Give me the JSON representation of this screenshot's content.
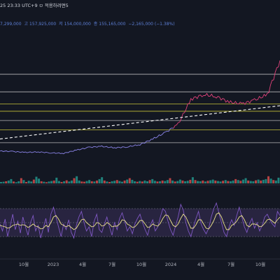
{
  "header": {
    "time_info": "25 23:33 UTC+9 ㅁ 적용하려면5",
    "ohlc": {
      "open": "7,299,000",
      "high_label": "고",
      "high": "157,925,000",
      "low_label": "저",
      "low": "154,000,000",
      "close_label": "종",
      "close": "155,165,000",
      "change": "−2,165,000 (−1.38%)"
    }
  },
  "colors": {
    "background": "#131722",
    "price_line": "#8b84e8",
    "price_line_up": "#e0417a",
    "level_line": "#c9c9c9",
    "level_line_yellow": "#d8d33a",
    "trend_line": "#ffffff",
    "volume_up": "#26a69a",
    "volume_down": "#ef5350",
    "osc_line": "#7e57c2",
    "osc_signal": "#f0e68c",
    "osc_band": "#3a2f5a",
    "axis_text": "#b2b5be"
  },
  "chart_data": {
    "type": "line",
    "x_ticks": [
      "10월",
      "2023",
      "4월",
      "7월",
      "10월",
      "2024",
      "4월",
      "7월",
      "10월"
    ],
    "price": {
      "unit": "KRW",
      "ylim": [
        20000000,
        160000000
      ],
      "x": [
        0,
        5,
        10,
        15,
        20,
        25,
        30,
        35,
        40,
        45,
        50,
        55,
        60,
        65,
        70,
        75,
        80,
        85,
        90,
        95,
        100,
        105,
        110
      ],
      "values": [
        27000000,
        26500000,
        25500000,
        26000000,
        25000000,
        24500000,
        28000000,
        31000000,
        32000000,
        30500000,
        31500000,
        34000000,
        40000000,
        47000000,
        56000000,
        83000000,
        88000000,
        86000000,
        80000000,
        78000000,
        82000000,
        88000000,
        125000000
      ],
      "levels": [
        {
          "value": 110000000,
          "color": "level_line"
        },
        {
          "value": 91000000,
          "color": "level_line"
        },
        {
          "value": 78000000,
          "color": "level_line_yellow"
        },
        {
          "value": 70000000,
          "color": "level_line_yellow"
        },
        {
          "value": 60000000,
          "color": "level_line"
        },
        {
          "value": 50000000,
          "color": "level_line_yellow"
        },
        {
          "value": 36000000,
          "color": "level_line"
        }
      ],
      "trend_line": {
        "start": [
          0,
          40000000
        ],
        "end": [
          110000000,
          76000000
        ]
      }
    },
    "volume": {
      "ylim": [
        0,
        100
      ],
      "values": [
        6,
        7,
        9,
        12,
        18,
        8,
        5,
        9,
        22,
        14,
        6,
        11,
        8,
        16,
        28,
        20,
        9,
        7,
        5,
        8,
        10,
        12,
        24,
        10,
        6,
        9,
        13,
        8,
        12,
        22,
        30,
        12,
        8,
        7,
        10,
        14,
        9,
        8,
        12,
        18,
        26,
        12,
        8,
        6,
        9,
        11,
        14,
        10,
        7,
        12,
        16,
        22,
        15,
        9,
        7,
        10,
        8,
        12,
        9,
        14,
        18,
        11,
        8,
        9,
        12,
        10,
        14,
        22,
        12,
        8,
        10,
        16,
        12,
        9,
        11,
        15,
        26,
        14,
        10,
        9,
        12,
        8,
        11,
        13,
        16,
        12,
        10,
        8,
        11,
        14,
        10,
        9,
        12,
        18,
        14,
        11,
        16,
        22,
        12,
        10,
        9,
        13,
        16,
        12,
        15,
        18,
        30,
        20,
        14,
        12,
        24
      ],
      "up": [
        1,
        1,
        0,
        1,
        1,
        0,
        1,
        1,
        0,
        1,
        0,
        1,
        1,
        0,
        1,
        1,
        0,
        1,
        0,
        1,
        1,
        0,
        1,
        1,
        0,
        1,
        0,
        1,
        1,
        0,
        1,
        1,
        0,
        0,
        1,
        1,
        0,
        1,
        0,
        1,
        1,
        0,
        1,
        0,
        1,
        1,
        0,
        1,
        1,
        0,
        1,
        0,
        1,
        1,
        0,
        1,
        0,
        1,
        1,
        0,
        1,
        1,
        0,
        1,
        0,
        1,
        1,
        0,
        1,
        0,
        1,
        1,
        0,
        1,
        1,
        0,
        1,
        0,
        1,
        1,
        0,
        1,
        0,
        1,
        1,
        0,
        1,
        1,
        0,
        1,
        0,
        1,
        1,
        0,
        1,
        0,
        1,
        1,
        0,
        1,
        1,
        0,
        1,
        0,
        1,
        1,
        0,
        1,
        0,
        1,
        1
      ]
    },
    "oscillator": {
      "ylim": [
        0,
        100
      ],
      "band": [
        30,
        70
      ],
      "values": [
        48,
        38,
        55,
        30,
        45,
        62,
        40,
        52,
        35,
        58,
        44,
        32,
        50,
        60,
        38,
        46,
        28,
        42,
        56,
        36,
        62,
        72,
        58,
        44,
        30,
        48,
        40,
        54,
        36,
        28,
        46,
        58,
        66,
        50,
        38,
        44,
        30,
        52,
        62,
        40,
        36,
        48,
        58,
        44,
        32,
        50,
        40,
        56,
        64,
        52,
        38,
        44,
        34,
        48,
        56,
        62,
        50,
        40,
        32,
        46,
        54,
        38,
        44,
        58,
        70,
        66,
        52,
        40,
        32,
        46,
        58,
        76,
        68,
        50,
        38,
        30,
        44,
        56,
        66,
        48,
        40,
        34,
        42,
        58,
        70,
        78,
        64,
        50,
        36,
        30,
        44,
        54,
        46,
        60,
        72,
        58,
        44,
        36,
        48,
        56,
        42,
        50,
        38,
        46,
        58,
        62,
        54,
        48,
        44,
        66,
        60
      ],
      "signal": [
        46,
        45,
        44,
        42,
        43,
        46,
        47,
        48,
        46,
        47,
        46,
        43,
        45,
        48,
        45,
        44,
        41,
        42,
        46,
        44,
        50,
        58,
        60,
        55,
        48,
        46,
        44,
        46,
        43,
        40,
        42,
        48,
        54,
        55,
        50,
        47,
        44,
        45,
        50,
        49,
        45,
        46,
        50,
        48,
        44,
        45,
        45,
        48,
        54,
        53,
        48,
        46,
        43,
        44,
        48,
        53,
        53,
        48,
        43,
        44,
        48,
        46,
        45,
        49,
        56,
        61,
        60,
        53,
        46,
        44,
        48,
        56,
        62,
        58,
        50,
        42,
        42,
        47,
        54,
        54,
        48,
        42,
        41,
        46,
        53,
        62,
        64,
        58,
        48,
        40,
        40,
        46,
        48,
        52,
        58,
        60,
        54,
        46,
        44,
        48,
        48,
        47,
        44,
        45,
        49,
        54,
        55,
        52,
        49,
        54,
        58
      ]
    }
  }
}
